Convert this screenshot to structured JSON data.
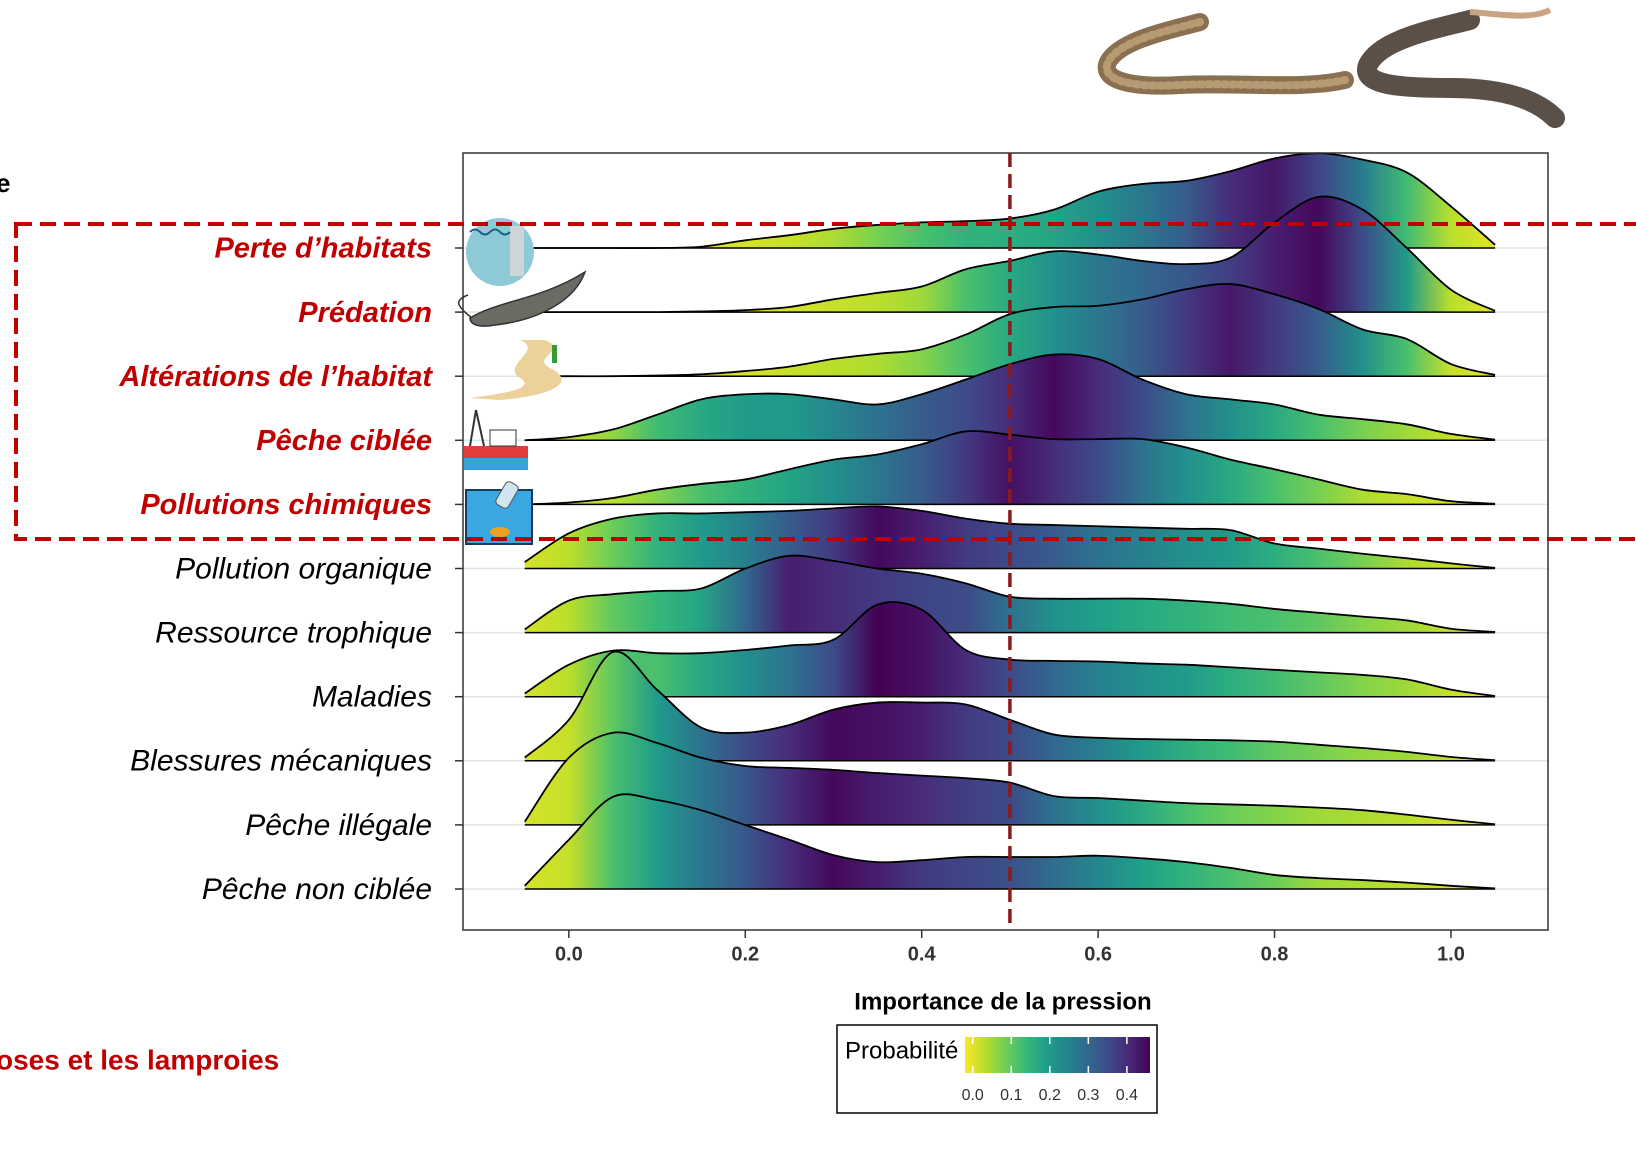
{
  "chart_data": {
    "type": "ridgeline",
    "x_label": "Importance de la pression",
    "categories": [
      "Perte d’habitats",
      "Prédation",
      "Altérations de l’habitat",
      "Pêche ciblée",
      "Pollutions chimiques",
      "Pollution organique",
      "Ressource trophique",
      "Maladies",
      "Blessures mécaniques",
      "Pêche illégale",
      "Pêche non ciblée"
    ],
    "highlight": [
      true,
      true,
      true,
      true,
      true,
      false,
      false,
      false,
      false,
      false,
      false
    ],
    "x": [
      -0.05,
      0,
      0.05,
      0.1,
      0.15,
      0.2,
      0.25,
      0.3,
      0.35,
      0.4,
      0.45,
      0.5,
      0.55,
      0.6,
      0.65,
      0.7,
      0.75,
      0.8,
      0.85,
      0.9,
      0.95,
      1.0,
      1.05
    ],
    "densities": [
      [
        0,
        0,
        0,
        0,
        0.02,
        0.12,
        0.2,
        0.3,
        0.36,
        0.4,
        0.42,
        0.46,
        0.6,
        0.88,
        1.0,
        1.05,
        1.2,
        1.4,
        1.48,
        1.38,
        1.18,
        0.65,
        0.05
      ],
      [
        0,
        0,
        0,
        0,
        0.01,
        0.03,
        0.08,
        0.2,
        0.3,
        0.4,
        0.67,
        0.8,
        0.95,
        0.9,
        0.8,
        0.75,
        0.85,
        1.4,
        1.8,
        1.6,
        1.0,
        0.35,
        0.02
      ],
      [
        0,
        0,
        0,
        0.01,
        0.03,
        0.08,
        0.15,
        0.27,
        0.35,
        0.42,
        0.65,
        0.97,
        1.08,
        1.1,
        1.2,
        1.36,
        1.44,
        1.28,
        1.05,
        0.73,
        0.58,
        0.19,
        0.02
      ],
      [
        0,
        0.05,
        0.17,
        0.4,
        0.64,
        0.72,
        0.72,
        0.64,
        0.56,
        0.72,
        0.95,
        1.19,
        1.34,
        1.27,
        0.95,
        0.72,
        0.64,
        0.56,
        0.4,
        0.33,
        0.25,
        0.1,
        0.01
      ],
      [
        0,
        0.03,
        0.1,
        0.23,
        0.32,
        0.39,
        0.55,
        0.7,
        0.78,
        0.94,
        1.14,
        1.09,
        1.02,
        1.02,
        1.02,
        0.89,
        0.7,
        0.55,
        0.39,
        0.23,
        0.16,
        0.05,
        0.01
      ],
      [
        0.1,
        0.55,
        0.78,
        0.86,
        0.86,
        0.88,
        0.9,
        0.94,
        0.97,
        0.9,
        0.78,
        0.7,
        0.68,
        0.66,
        0.64,
        0.62,
        0.6,
        0.39,
        0.31,
        0.23,
        0.16,
        0.08,
        0.01
      ],
      [
        0.05,
        0.5,
        0.6,
        0.65,
        0.69,
        1.0,
        1.2,
        1.12,
        1.0,
        0.92,
        0.77,
        0.56,
        0.53,
        0.53,
        0.53,
        0.5,
        0.45,
        0.37,
        0.31,
        0.25,
        0.19,
        0.06,
        0.01
      ],
      [
        0.05,
        0.5,
        0.72,
        0.68,
        0.68,
        0.73,
        0.8,
        0.89,
        1.44,
        1.36,
        0.73,
        0.58,
        0.56,
        0.55,
        0.52,
        0.5,
        0.46,
        0.42,
        0.38,
        0.34,
        0.27,
        0.11,
        0.01
      ],
      [
        0.05,
        0.64,
        1.7,
        1.11,
        0.52,
        0.44,
        0.56,
        0.8,
        0.91,
        0.91,
        0.88,
        0.64,
        0.41,
        0.36,
        0.34,
        0.33,
        0.32,
        0.3,
        0.25,
        0.2,
        0.14,
        0.06,
        0.01
      ],
      [
        0.05,
        1.05,
        1.44,
        1.28,
        1.05,
        0.92,
        0.89,
        0.86,
        0.81,
        0.77,
        0.73,
        0.66,
        0.45,
        0.42,
        0.38,
        0.34,
        0.32,
        0.3,
        0.27,
        0.23,
        0.16,
        0.08,
        0.01
      ],
      [
        0.05,
        0.77,
        1.44,
        1.39,
        1.23,
        1.0,
        0.77,
        0.53,
        0.42,
        0.45,
        0.5,
        0.5,
        0.5,
        0.52,
        0.48,
        0.42,
        0.33,
        0.22,
        0.17,
        0.14,
        0.1,
        0.05,
        0.01
      ]
    ],
    "probabilities": [
      [
        0,
        0,
        0,
        0,
        0,
        0.01,
        0.02,
        0.04,
        0.08,
        0.12,
        0.15,
        0.16,
        0.18,
        0.22,
        0.27,
        0.32,
        0.4,
        0.43,
        0.36,
        0.26,
        0.13,
        0.03,
        0
      ],
      [
        0,
        0,
        0,
        0,
        0,
        0.01,
        0.01,
        0.02,
        0.03,
        0.05,
        0.12,
        0.17,
        0.22,
        0.27,
        0.3,
        0.33,
        0.37,
        0.42,
        0.45,
        0.35,
        0.2,
        0.03,
        0
      ],
      [
        0,
        0,
        0,
        0,
        0.01,
        0.01,
        0.02,
        0.03,
        0.04,
        0.07,
        0.12,
        0.17,
        0.22,
        0.27,
        0.32,
        0.38,
        0.43,
        0.38,
        0.32,
        0.22,
        0.12,
        0.02,
        0
      ],
      [
        0.02,
        0.03,
        0.06,
        0.13,
        0.17,
        0.2,
        0.2,
        0.24,
        0.28,
        0.32,
        0.35,
        0.4,
        0.45,
        0.4,
        0.35,
        0.28,
        0.22,
        0.17,
        0.12,
        0.08,
        0.05,
        0.02,
        0
      ],
      [
        0,
        0.01,
        0.03,
        0.07,
        0.12,
        0.15,
        0.18,
        0.22,
        0.27,
        0.32,
        0.38,
        0.44,
        0.4,
        0.35,
        0.28,
        0.22,
        0.17,
        0.12,
        0.08,
        0.04,
        0.02,
        0.01,
        0
      ],
      [
        0.01,
        0.03,
        0.09,
        0.15,
        0.2,
        0.25,
        0.32,
        0.38,
        0.45,
        0.42,
        0.38,
        0.35,
        0.32,
        0.28,
        0.25,
        0.22,
        0.2,
        0.16,
        0.12,
        0.08,
        0.04,
        0.02,
        0
      ],
      [
        0.01,
        0.03,
        0.1,
        0.14,
        0.18,
        0.3,
        0.42,
        0.4,
        0.38,
        0.36,
        0.35,
        0.28,
        0.22,
        0.19,
        0.17,
        0.15,
        0.13,
        0.12,
        0.1,
        0.07,
        0.05,
        0.02,
        0
      ],
      [
        0.01,
        0.03,
        0.12,
        0.12,
        0.17,
        0.22,
        0.28,
        0.35,
        0.46,
        0.44,
        0.4,
        0.35,
        0.3,
        0.25,
        0.22,
        0.2,
        0.16,
        0.13,
        0.1,
        0.07,
        0.05,
        0.02,
        0
      ],
      [
        0.01,
        0.02,
        0.1,
        0.2,
        0.28,
        0.35,
        0.4,
        0.45,
        0.44,
        0.42,
        0.38,
        0.35,
        0.3,
        0.25,
        0.2,
        0.16,
        0.13,
        0.1,
        0.08,
        0.06,
        0.05,
        0.02,
        0
      ],
      [
        0.01,
        0.02,
        0.12,
        0.2,
        0.27,
        0.33,
        0.4,
        0.45,
        0.42,
        0.4,
        0.37,
        0.35,
        0.28,
        0.22,
        0.17,
        0.12,
        0.09,
        0.07,
        0.05,
        0.04,
        0.03,
        0.01,
        0
      ],
      [
        0.01,
        0.02,
        0.12,
        0.2,
        0.27,
        0.33,
        0.4,
        0.45,
        0.42,
        0.38,
        0.36,
        0.34,
        0.29,
        0.24,
        0.19,
        0.15,
        0.12,
        0.09,
        0.05,
        0.04,
        0.03,
        0.01,
        0
      ]
    ],
    "xlim": [
      -0.12,
      1.11
    ],
    "xticks": [
      {
        "value": 0,
        "label": "0.0"
      },
      {
        "value": 0.2,
        "label": "0.2"
      },
      {
        "value": 0.4,
        "label": "0.4"
      },
      {
        "value": 0.6,
        "label": "0.6"
      },
      {
        "value": 0.8,
        "label": "0.8"
      },
      {
        "value": 1.0,
        "label": "1.0"
      }
    ],
    "vline": 0.5,
    "vline_color": "#8b1a1a",
    "highlight_color": "#c00000",
    "grid": true,
    "colorbar": {
      "title": "Probabilité",
      "lim": [
        -0.02,
        0.46
      ],
      "ticks": [
        {
          "value": 0,
          "label": "0.0"
        },
        {
          "value": 0.1,
          "label": "0.1"
        },
        {
          "value": 0.2,
          "label": "0.2"
        },
        {
          "value": 0.3,
          "label": "0.3"
        },
        {
          "value": 0.4,
          "label": "0.4"
        }
      ],
      "colors": [
        "#fde725",
        "#b5de2b",
        "#6ece58",
        "#35b779",
        "#1f9e89",
        "#26828e",
        "#31688e",
        "#3e4989",
        "#482878",
        "#440154"
      ]
    }
  },
  "side_texts": {
    "top_left": "e",
    "bottom_left": "oses et les lamproies"
  }
}
